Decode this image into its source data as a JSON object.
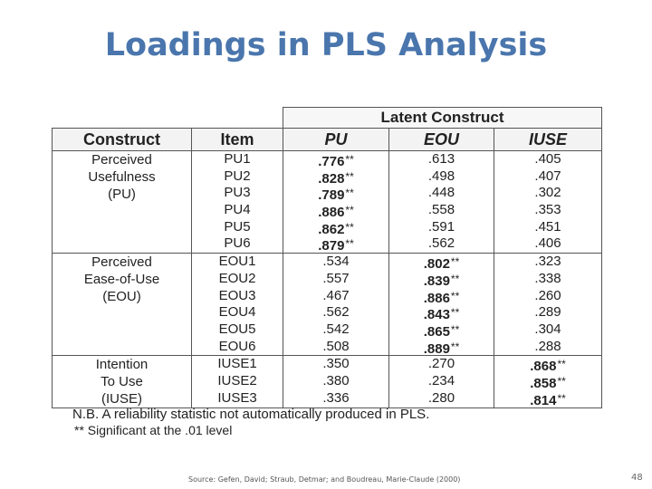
{
  "slide": {
    "title": "Loadings in PLS Analysis",
    "source": "Source: Gefen, David; Straub, Detmar; and Boudreau, Marie-Claude (2000)",
    "page_number": "48"
  },
  "table": {
    "latent_header": "Latent Construct",
    "columns": {
      "construct": "Construct",
      "item": "Item",
      "pu": "PU",
      "eou": "EOU",
      "iuse": "IUSE"
    },
    "groups": [
      {
        "construct_lines": [
          "Perceived",
          "Usefulness",
          "(PU)"
        ],
        "rows": [
          {
            "item": "PU1",
            "pu": ".776",
            "eou": ".613",
            "iuse": ".405",
            "sig": "pu"
          },
          {
            "item": "PU2",
            "pu": ".828",
            "eou": ".498",
            "iuse": ".407",
            "sig": "pu"
          },
          {
            "item": "PU3",
            "pu": ".789",
            "eou": ".448",
            "iuse": ".302",
            "sig": "pu"
          },
          {
            "item": "PU4",
            "pu": ".886",
            "eou": ".558",
            "iuse": ".353",
            "sig": "pu"
          },
          {
            "item": "PU5",
            "pu": ".862",
            "eou": ".591",
            "iuse": ".451",
            "sig": "pu"
          },
          {
            "item": "PU6",
            "pu": ".879",
            "eou": ".562",
            "iuse": ".406",
            "sig": "pu"
          }
        ]
      },
      {
        "construct_lines": [
          "Perceived",
          "Ease-of-Use",
          "(EOU)"
        ],
        "rows": [
          {
            "item": "EOU1",
            "pu": ".534",
            "eou": ".802",
            "iuse": ".323",
            "sig": "eou"
          },
          {
            "item": "EOU2",
            "pu": ".557",
            "eou": ".839",
            "iuse": ".338",
            "sig": "eou"
          },
          {
            "item": "EOU3",
            "pu": ".467",
            "eou": ".886",
            "iuse": ".260",
            "sig": "eou"
          },
          {
            "item": "EOU4",
            "pu": ".562",
            "eou": ".843",
            "iuse": ".289",
            "sig": "eou"
          },
          {
            "item": "EOU5",
            "pu": ".542",
            "eou": ".865",
            "iuse": ".304",
            "sig": "eou"
          },
          {
            "item": "EOU6",
            "pu": ".508",
            "eou": ".889",
            "iuse": ".288",
            "sig": "eou"
          }
        ]
      },
      {
        "construct_lines": [
          "Intention",
          "To Use",
          "(IUSE)"
        ],
        "rows": [
          {
            "item": "IUSE1",
            "pu": ".350",
            "eou": ".270",
            "iuse": ".868",
            "sig": "iuse"
          },
          {
            "item": "IUSE2",
            "pu": ".380",
            "eou": ".234",
            "iuse": ".858",
            "sig": "iuse"
          },
          {
            "item": "IUSE3",
            "pu": ".336",
            "eou": ".280",
            "iuse": ".814",
            "sig": "iuse"
          }
        ]
      }
    ],
    "significance_marker": "**",
    "notes": [
      "N.B. A reliability statistic not automatically produced in PLS.",
      "** Significant at the .01 level"
    ]
  }
}
